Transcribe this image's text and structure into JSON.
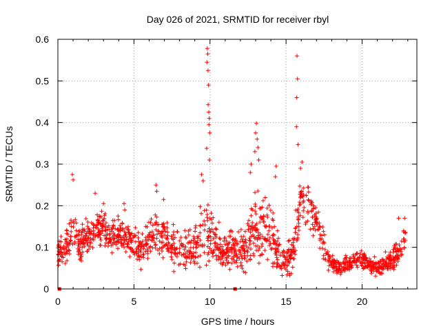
{
  "chart_data": {
    "type": "scatter",
    "title": "Day 026 of 2021, SRMTID for receiver rbyl",
    "xlabel": "GPS time / hours",
    "ylabel": "SRMTID / TECUs",
    "xlim": [
      0,
      23.6
    ],
    "ylim": [
      0,
      0.6
    ],
    "xticks": [
      0,
      5,
      10,
      15,
      20
    ],
    "yticks": [
      0,
      0.1,
      0.2,
      0.3,
      0.4,
      0.5,
      0.6
    ],
    "xtick_labels": [
      "0",
      "5",
      "10",
      "15",
      "20"
    ],
    "ytick_labels": [
      "0",
      "0.1",
      "0.2",
      "0.3",
      "0.4",
      "0.5",
      "0.6"
    ],
    "grid": true,
    "marker": "+",
    "series_color": "#ff0000",
    "series": [
      {
        "name": "SRMTID",
        "profile_note": "approximate envelope of the scattered + markers (hour, typical value, spread)",
        "profile_hours": [
          0,
          0.5,
          1,
          1.5,
          2,
          2.5,
          3,
          3.5,
          4,
          4.5,
          5,
          5.5,
          6,
          6.5,
          7,
          7.5,
          8,
          8.5,
          9,
          9.5,
          10,
          10.5,
          11,
          11.5,
          12,
          12.5,
          13,
          13.5,
          14,
          14.5,
          15,
          15.5,
          16,
          16.5,
          17,
          17.5,
          18,
          18.5,
          19,
          19.5,
          20,
          20.5,
          21,
          21.5,
          22,
          22.5,
          22.8
        ],
        "profile_values": [
          0.08,
          0.1,
          0.14,
          0.11,
          0.13,
          0.14,
          0.15,
          0.12,
          0.14,
          0.12,
          0.11,
          0.09,
          0.11,
          0.13,
          0.12,
          0.1,
          0.09,
          0.09,
          0.1,
          0.13,
          0.13,
          0.1,
          0.1,
          0.09,
          0.09,
          0.11,
          0.15,
          0.14,
          0.12,
          0.08,
          0.06,
          0.1,
          0.22,
          0.2,
          0.16,
          0.1,
          0.06,
          0.05,
          0.06,
          0.07,
          0.07,
          0.06,
          0.05,
          0.06,
          0.07,
          0.09,
          0.12
        ],
        "profile_spread": [
          0.03,
          0.04,
          0.06,
          0.05,
          0.04,
          0.04,
          0.04,
          0.04,
          0.04,
          0.04,
          0.04,
          0.04,
          0.05,
          0.05,
          0.05,
          0.05,
          0.05,
          0.05,
          0.06,
          0.07,
          0.06,
          0.05,
          0.05,
          0.04,
          0.04,
          0.06,
          0.08,
          0.08,
          0.08,
          0.05,
          0.04,
          0.06,
          0.05,
          0.05,
          0.05,
          0.04,
          0.02,
          0.02,
          0.02,
          0.02,
          0.02,
          0.02,
          0.02,
          0.03,
          0.03,
          0.04,
          0.04
        ],
        "spike_points": [
          {
            "x": 9.82,
            "y": 0.578
          },
          {
            "x": 9.85,
            "y": 0.565
          },
          {
            "x": 9.8,
            "y": 0.545
          },
          {
            "x": 9.87,
            "y": 0.525
          },
          {
            "x": 9.9,
            "y": 0.49
          },
          {
            "x": 9.88,
            "y": 0.443
          },
          {
            "x": 9.92,
            "y": 0.425
          },
          {
            "x": 9.95,
            "y": 0.41
          },
          {
            "x": 9.93,
            "y": 0.395
          },
          {
            "x": 9.98,
            "y": 0.375
          },
          {
            "x": 9.78,
            "y": 0.338
          },
          {
            "x": 9.96,
            "y": 0.31
          },
          {
            "x": 9.45,
            "y": 0.275
          },
          {
            "x": 9.55,
            "y": 0.26
          },
          {
            "x": 13.05,
            "y": 0.398
          },
          {
            "x": 13.0,
            "y": 0.375
          },
          {
            "x": 13.1,
            "y": 0.36
          },
          {
            "x": 13.15,
            "y": 0.34
          },
          {
            "x": 12.95,
            "y": 0.33
          },
          {
            "x": 13.2,
            "y": 0.31
          },
          {
            "x": 12.7,
            "y": 0.3
          },
          {
            "x": 12.65,
            "y": 0.28
          },
          {
            "x": 14.35,
            "y": 0.295
          },
          {
            "x": 14.3,
            "y": 0.27
          },
          {
            "x": 15.72,
            "y": 0.56
          },
          {
            "x": 15.75,
            "y": 0.505
          },
          {
            "x": 15.7,
            "y": 0.46
          },
          {
            "x": 15.68,
            "y": 0.39
          },
          {
            "x": 15.78,
            "y": 0.347
          },
          {
            "x": 16.05,
            "y": 0.305
          },
          {
            "x": 15.95,
            "y": 0.29
          },
          {
            "x": 0.95,
            "y": 0.275
          },
          {
            "x": 1.0,
            "y": 0.262
          },
          {
            "x": 2.45,
            "y": 0.23
          },
          {
            "x": 6.45,
            "y": 0.25
          },
          {
            "x": 6.5,
            "y": 0.235
          },
          {
            "x": 3.0,
            "y": 0.205
          },
          {
            "x": 4.35,
            "y": 0.205
          },
          {
            "x": 4.4,
            "y": 0.19
          },
          {
            "x": 6.95,
            "y": 0.215
          },
          {
            "x": 22.4,
            "y": 0.17
          },
          {
            "x": 22.8,
            "y": 0.17
          }
        ],
        "axis_points": [
          {
            "x": 0.1,
            "y": 0.0
          },
          {
            "x": 11.65,
            "y": 0.0
          }
        ]
      }
    ]
  }
}
